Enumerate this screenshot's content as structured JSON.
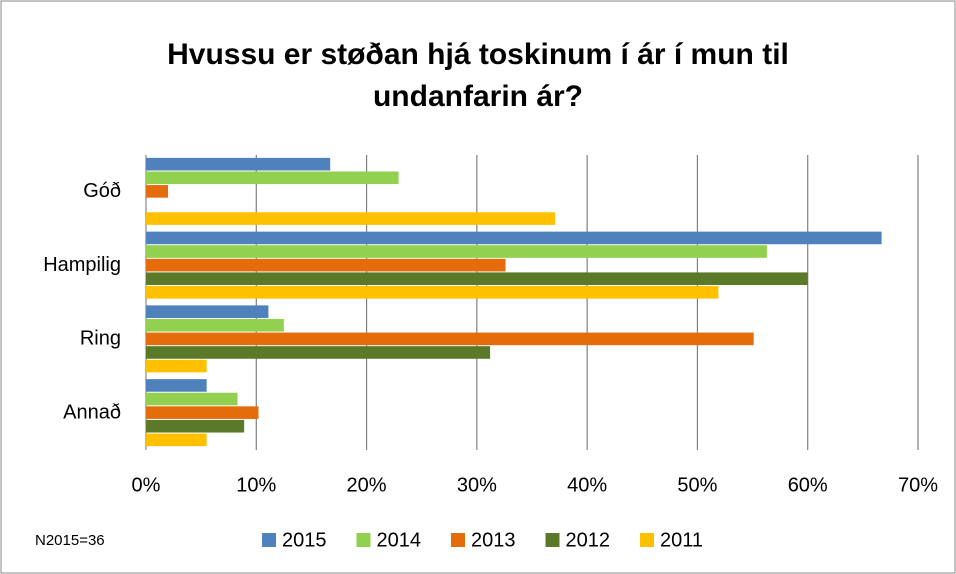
{
  "chart_data": {
    "type": "bar",
    "orientation": "horizontal",
    "title": "Hvussu er støðan hjá toskinum í ár í mun til undanfarin ár?",
    "annotation": "N2015=36",
    "categories": [
      "Góð",
      "Hampilig",
      "Ring",
      "Annað"
    ],
    "series": [
      {
        "name": "2015",
        "color": "#4f81bd",
        "values": [
          16.7,
          66.7,
          11.1,
          5.5
        ]
      },
      {
        "name": "2014",
        "color": "#92d050",
        "values": [
          22.9,
          56.3,
          12.5,
          8.3
        ]
      },
      {
        "name": "2013",
        "color": "#e46c0a",
        "values": [
          2.0,
          32.6,
          55.1,
          10.2
        ]
      },
      {
        "name": "2012",
        "color": "#5a7a2a",
        "values": [
          0,
          60.0,
          31.2,
          8.9
        ]
      },
      {
        "name": "2011",
        "color": "#ffc000",
        "values": [
          37.1,
          51.9,
          5.5,
          5.5
        ]
      }
    ],
    "xlim": [
      0,
      70
    ],
    "xticks": [
      {
        "value": 0,
        "label": "0%"
      },
      {
        "value": 10,
        "label": "10%"
      },
      {
        "value": 20,
        "label": "20%"
      },
      {
        "value": 30,
        "label": "30%"
      },
      {
        "value": 40,
        "label": "40%"
      },
      {
        "value": 50,
        "label": "50%"
      },
      {
        "value": 60,
        "label": "60%"
      },
      {
        "value": 70,
        "label": "70%"
      }
    ],
    "grid": true,
    "legend": "bottom"
  }
}
